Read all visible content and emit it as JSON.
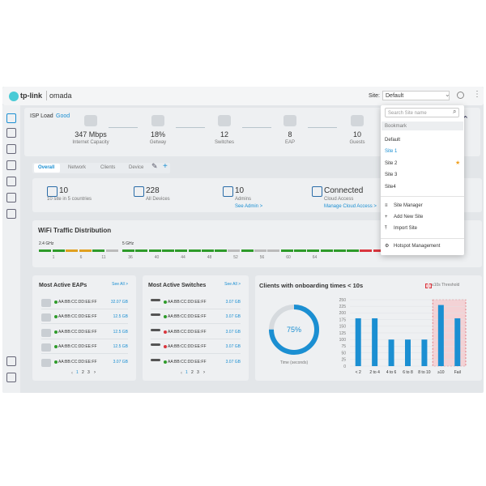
{
  "header": {
    "logo": "tp-link",
    "product": "omada",
    "site_label": "Site:",
    "site_value": "Default"
  },
  "isp": {
    "label": "ISP Load",
    "status": "Good",
    "items": [
      {
        "value": "347 Mbps",
        "label": "Internet Capacity"
      },
      {
        "value": "18%",
        "label": "Getway"
      },
      {
        "value": "12",
        "label": "Switches"
      },
      {
        "value": "8",
        "label": "EAP"
      },
      {
        "value": "10",
        "label": "Guests"
      }
    ]
  },
  "tabs": [
    "Overall",
    "Network",
    "Clients",
    "Device"
  ],
  "summary": [
    {
      "value": "10",
      "label": "10 site in 5 countries"
    },
    {
      "value": "228",
      "label": "All Devices"
    },
    {
      "value": "10",
      "label": "Admins",
      "link": "See Admin >"
    },
    {
      "value": "Connected",
      "label": "Cloud Access",
      "link": "Manage Cloud Access >"
    }
  ],
  "wifi": {
    "title": "WiFi Traffic Distribution",
    "band_24": {
      "name": "2.4 GHz",
      "channels": [
        "1",
        "6",
        "11"
      ]
    },
    "band_5": {
      "name": "5 GHz",
      "channels": [
        "36",
        "40",
        "44",
        "48",
        "52",
        "56",
        "60",
        "64"
      ]
    }
  },
  "eaps": {
    "title": "Most Active EAPs",
    "see_all": "See All >",
    "rows": [
      {
        "mac": "AA:BB:CC:DD:EE:FF",
        "usage": "32.07 GB"
      },
      {
        "mac": "AA:BB:CC:DD:EE:FF",
        "usage": "12.5 GB"
      },
      {
        "mac": "AA:BB:CC:DD:EE:FF",
        "usage": "12.5 GB"
      },
      {
        "mac": "AA:BB:CC:DD:EE:FF",
        "usage": "12.5 GB"
      },
      {
        "mac": "AA:BB:CC:DD:EE:FF",
        "usage": "3.07 GB"
      }
    ],
    "pages": [
      "1",
      "2",
      "3"
    ]
  },
  "switches": {
    "title": "Most Active Switches",
    "see_all": "See All >",
    "rows": [
      {
        "mac": "AA:BB:CC:DD:EE:FF",
        "usage": "3.07 GB"
      },
      {
        "mac": "AA:BB:CC:DD:EE:FF",
        "usage": "3.07 GB"
      },
      {
        "mac": "AA:BB:CC:DD:EE:FF",
        "usage": "3.07 GB"
      },
      {
        "mac": "AA:BB:CC:DD:EE:FF",
        "usage": "3.07 GB"
      },
      {
        "mac": "AA:BB:CC:DD:EE:FF",
        "usage": "3.07 GB"
      }
    ],
    "pages": [
      "1",
      "2",
      "3"
    ]
  },
  "clients_chart": {
    "title": "Clients with onboarding times < 10s",
    "legend": "≤10s Threshold",
    "donut_value": 75,
    "donut_label": "75%",
    "donut_caption": "Time (seconds)",
    "categories": [
      "< 2",
      "2 to 4",
      "4 to 6",
      "6 to 8",
      "8 to 10",
      "≥10",
      "Fail"
    ],
    "values": [
      180,
      180,
      100,
      100,
      100,
      230,
      180
    ],
    "ylim": [
      0,
      250
    ],
    "yticks": [
      0,
      25,
      50,
      75,
      100,
      125,
      150,
      175,
      200,
      225,
      250
    ]
  },
  "dropdown": {
    "search_placeholder": "Search Site name",
    "section": "Bookmark",
    "sites": [
      "Default",
      "Site 1",
      "Site 2",
      "Site 3",
      "Site4"
    ],
    "actions": [
      "Site Manager",
      "Add New Site",
      "Import Site"
    ],
    "footer_action": "Hotspot Management"
  }
}
